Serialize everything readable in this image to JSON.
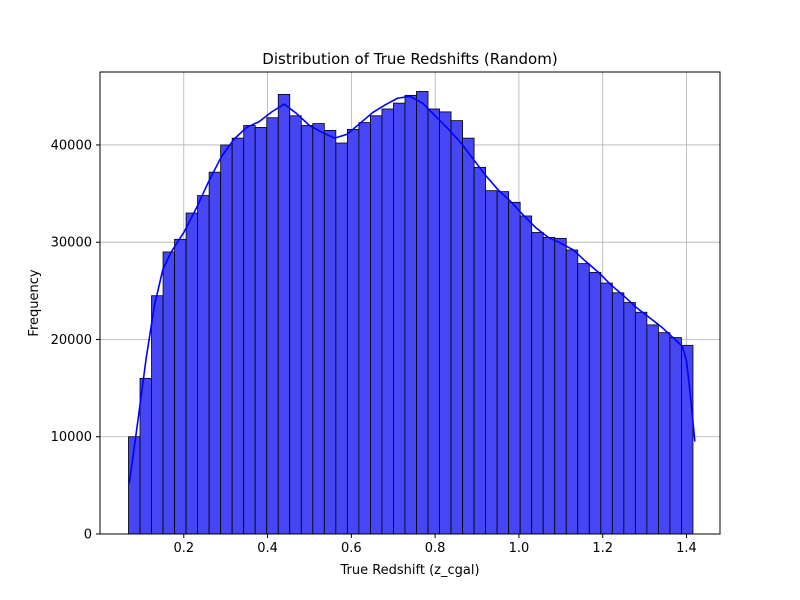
{
  "chart_data": {
    "type": "bar",
    "subtype": "histogram",
    "title": "Distribution of True Redshifts (Random)",
    "xlabel": "True Redshift (z_cgal)",
    "ylabel": "Frequency",
    "xlim": [
      0.0,
      1.48
    ],
    "ylim": [
      0,
      47500
    ],
    "xticks": [
      0.2,
      0.4,
      0.6,
      0.8,
      1.0,
      1.2,
      1.4
    ],
    "xtick_labels": [
      "0.2",
      "0.4",
      "0.6",
      "0.8",
      "1.0",
      "1.2",
      "1.4"
    ],
    "yticks": [
      0,
      10000,
      20000,
      30000,
      40000
    ],
    "ytick_labels": [
      "0",
      "10000",
      "20000",
      "30000",
      "40000"
    ],
    "grid": true,
    "bar_color": "#4646f5",
    "bar_edge_color": "#000000",
    "kde_color": "#0000ff",
    "bin_edges": [
      0.068,
      0.0955,
      0.123,
      0.1505,
      0.178,
      0.2055,
      0.233,
      0.2605,
      0.288,
      0.3155,
      0.343,
      0.3705,
      0.398,
      0.4255,
      0.453,
      0.4805,
      0.508,
      0.5355,
      0.563,
      0.5905,
      0.618,
      0.6455,
      0.673,
      0.7005,
      0.728,
      0.7555,
      0.783,
      0.8105,
      0.838,
      0.8655,
      0.893,
      0.9205,
      0.948,
      0.9755,
      1.003,
      1.0305,
      1.058,
      1.0855,
      1.113,
      1.1405,
      1.168,
      1.1955,
      1.223,
      1.2505,
      1.278,
      1.3055,
      1.333,
      1.3605,
      1.388,
      1.4155
    ],
    "values": [
      10000,
      16000,
      24500,
      29000,
      30300,
      33000,
      34800,
      37200,
      40000,
      40700,
      42000,
      41800,
      42800,
      45200,
      43000,
      42000,
      42200,
      41500,
      40200,
      41600,
      42300,
      43000,
      43700,
      44300,
      45100,
      45500,
      43700,
      43400,
      42500,
      40700,
      37700,
      35300,
      35200,
      34100,
      32700,
      31000,
      30500,
      30400,
      29200,
      27800,
      26900,
      25800,
      24800,
      23800,
      22800,
      21500,
      20700,
      20200,
      19400
    ],
    "kde": {
      "x": [
        0.07,
        0.09,
        0.11,
        0.13,
        0.15,
        0.17,
        0.2,
        0.23,
        0.26,
        0.29,
        0.32,
        0.35,
        0.38,
        0.41,
        0.44,
        0.47,
        0.5,
        0.53,
        0.56,
        0.59,
        0.62,
        0.65,
        0.68,
        0.71,
        0.74,
        0.77,
        0.8,
        0.83,
        0.86,
        0.89,
        0.92,
        0.95,
        0.98,
        1.01,
        1.04,
        1.07,
        1.1,
        1.13,
        1.16,
        1.19,
        1.22,
        1.25,
        1.28,
        1.31,
        1.34,
        1.37,
        1.39,
        1.4,
        1.41,
        1.42
      ],
      "y": [
        5200,
        11500,
        18000,
        23500,
        27200,
        29000,
        31000,
        33500,
        36300,
        38800,
        40600,
        41800,
        42400,
        43400,
        44200,
        43200,
        42000,
        41300,
        40700,
        41100,
        42200,
        43300,
        44100,
        44800,
        45000,
        44300,
        43000,
        41700,
        40300,
        38600,
        36900,
        35400,
        34200,
        32800,
        31500,
        30500,
        29900,
        29200,
        28000,
        26900,
        25600,
        24500,
        23300,
        22300,
        21300,
        20100,
        19300,
        17800,
        14000,
        9500
      ]
    }
  }
}
